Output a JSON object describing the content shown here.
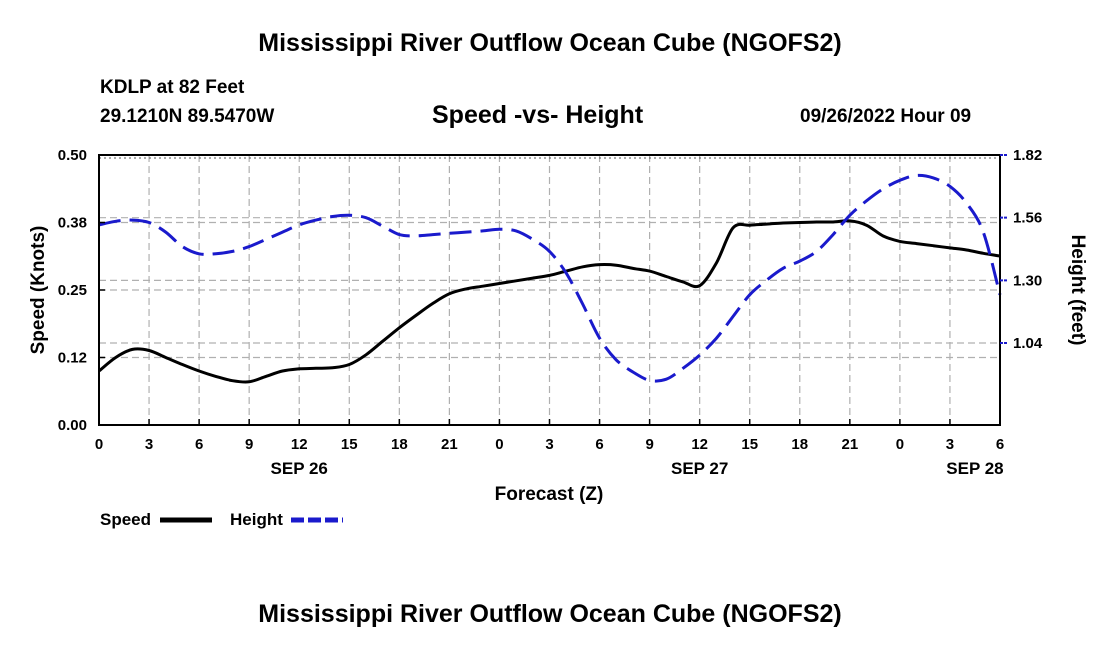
{
  "title": "Mississippi River Outflow Ocean Cube (NGOFS2)",
  "footer_title": "Mississippi River Outflow Ocean Cube (NGOFS2)",
  "station": {
    "name": "KDLP at 82 Feet",
    "coords": "29.1210N  89.5470W"
  },
  "date_label": "09/26/2022 Hour 09",
  "colors": {
    "speed": "#000000",
    "height": "#1a1acc",
    "grid": "#b0b0b0"
  },
  "chart_data": {
    "type": "line",
    "title": "Speed -vs- Height",
    "xlabel": "Forecast (Z)",
    "ylabel": "Speed (Knots)",
    "y2label": "Height (feet)",
    "xlim": [
      0,
      54
    ],
    "ylim": [
      0,
      0.5
    ],
    "y2lim": [
      0.7,
      1.82
    ],
    "x_ticks": [
      {
        "x": 0,
        "label": "0"
      },
      {
        "x": 3,
        "label": "3"
      },
      {
        "x": 6,
        "label": "6"
      },
      {
        "x": 9,
        "label": "9"
      },
      {
        "x": 12,
        "label": "12"
      },
      {
        "x": 15,
        "label": "15"
      },
      {
        "x": 18,
        "label": "18"
      },
      {
        "x": 21,
        "label": "21"
      },
      {
        "x": 24,
        "label": "0"
      },
      {
        "x": 27,
        "label": "3"
      },
      {
        "x": 30,
        "label": "6"
      },
      {
        "x": 33,
        "label": "9"
      },
      {
        "x": 36,
        "label": "12"
      },
      {
        "x": 39,
        "label": "15"
      },
      {
        "x": 42,
        "label": "18"
      },
      {
        "x": 45,
        "label": "21"
      },
      {
        "x": 48,
        "label": "0"
      },
      {
        "x": 51,
        "label": "3"
      },
      {
        "x": 54,
        "label": "6"
      }
    ],
    "date_ticks": [
      {
        "x": 12,
        "label": "SEP 26"
      },
      {
        "x": 36,
        "label": "SEP 27"
      },
      {
        "x": 52.5,
        "label": "SEP 28"
      }
    ],
    "y_ticks": [
      {
        "v": 0.0,
        "label": "0.00"
      },
      {
        "v": 0.125,
        "label": "0.12"
      },
      {
        "v": 0.25,
        "label": "0.25"
      },
      {
        "v": 0.375,
        "label": "0.38"
      },
      {
        "v": 0.5,
        "label": "0.50"
      }
    ],
    "y2_ticks": [
      {
        "v": 1.04,
        "label": "1.04"
      },
      {
        "v": 1.3,
        "label": "1.30"
      },
      {
        "v": 1.56,
        "label": "1.56"
      },
      {
        "v": 1.82,
        "label": "1.82"
      }
    ],
    "series": [
      {
        "name": "Speed",
        "axis": "left",
        "style": "solid",
        "x": [
          0,
          1,
          2,
          3,
          4,
          5,
          6,
          7,
          8,
          9,
          10,
          11,
          12,
          13,
          14,
          15,
          16,
          17,
          18,
          19,
          20,
          21,
          22,
          23,
          24,
          25,
          26,
          27,
          28,
          29,
          30,
          31,
          32,
          33,
          34,
          35,
          36,
          37,
          38,
          39,
          40,
          41,
          42,
          43,
          44,
          45,
          46,
          47,
          48,
          49,
          50,
          51,
          52,
          53,
          54
        ],
        "values": [
          0.1,
          0.125,
          0.14,
          0.138,
          0.125,
          0.112,
          0.1,
          0.09,
          0.082,
          0.08,
          0.09,
          0.1,
          0.104,
          0.105,
          0.106,
          0.112,
          0.13,
          0.155,
          0.18,
          0.203,
          0.225,
          0.243,
          0.252,
          0.257,
          0.262,
          0.267,
          0.272,
          0.277,
          0.285,
          0.293,
          0.297,
          0.296,
          0.29,
          0.285,
          0.275,
          0.265,
          0.258,
          0.3,
          0.365,
          0.37,
          0.372,
          0.374,
          0.375,
          0.376,
          0.376,
          0.378,
          0.37,
          0.35,
          0.34,
          0.336,
          0.332,
          0.328,
          0.324,
          0.318,
          0.313
        ]
      },
      {
        "name": "Height",
        "axis": "right",
        "style": "dashed",
        "x": [
          0,
          1,
          2,
          3,
          4,
          5,
          6,
          7,
          8,
          9,
          10,
          11,
          12,
          13,
          14,
          15,
          16,
          17,
          18,
          19,
          20,
          21,
          22,
          23,
          24,
          25,
          26,
          27,
          28,
          29,
          30,
          31,
          32,
          33,
          34,
          35,
          36,
          37,
          38,
          39,
          40,
          41,
          42,
          43,
          44,
          45,
          46,
          47,
          48,
          49,
          50,
          51,
          52,
          53,
          54
        ],
        "values": [
          1.53,
          1.545,
          1.55,
          1.54,
          1.5,
          1.44,
          1.41,
          1.41,
          1.42,
          1.44,
          1.47,
          1.5,
          1.53,
          1.55,
          1.565,
          1.57,
          1.56,
          1.525,
          1.49,
          1.485,
          1.49,
          1.495,
          1.5,
          1.505,
          1.512,
          1.505,
          1.47,
          1.42,
          1.33,
          1.2,
          1.06,
          0.97,
          0.92,
          0.885,
          0.89,
          0.935,
          0.99,
          1.06,
          1.15,
          1.24,
          1.3,
          1.35,
          1.38,
          1.42,
          1.49,
          1.57,
          1.63,
          1.68,
          1.715,
          1.735,
          1.725,
          1.69,
          1.62,
          1.5,
          1.24
        ]
      }
    ],
    "legend": [
      {
        "label": "Speed",
        "style": "solid"
      },
      {
        "label": "Height",
        "style": "dashed"
      }
    ]
  }
}
